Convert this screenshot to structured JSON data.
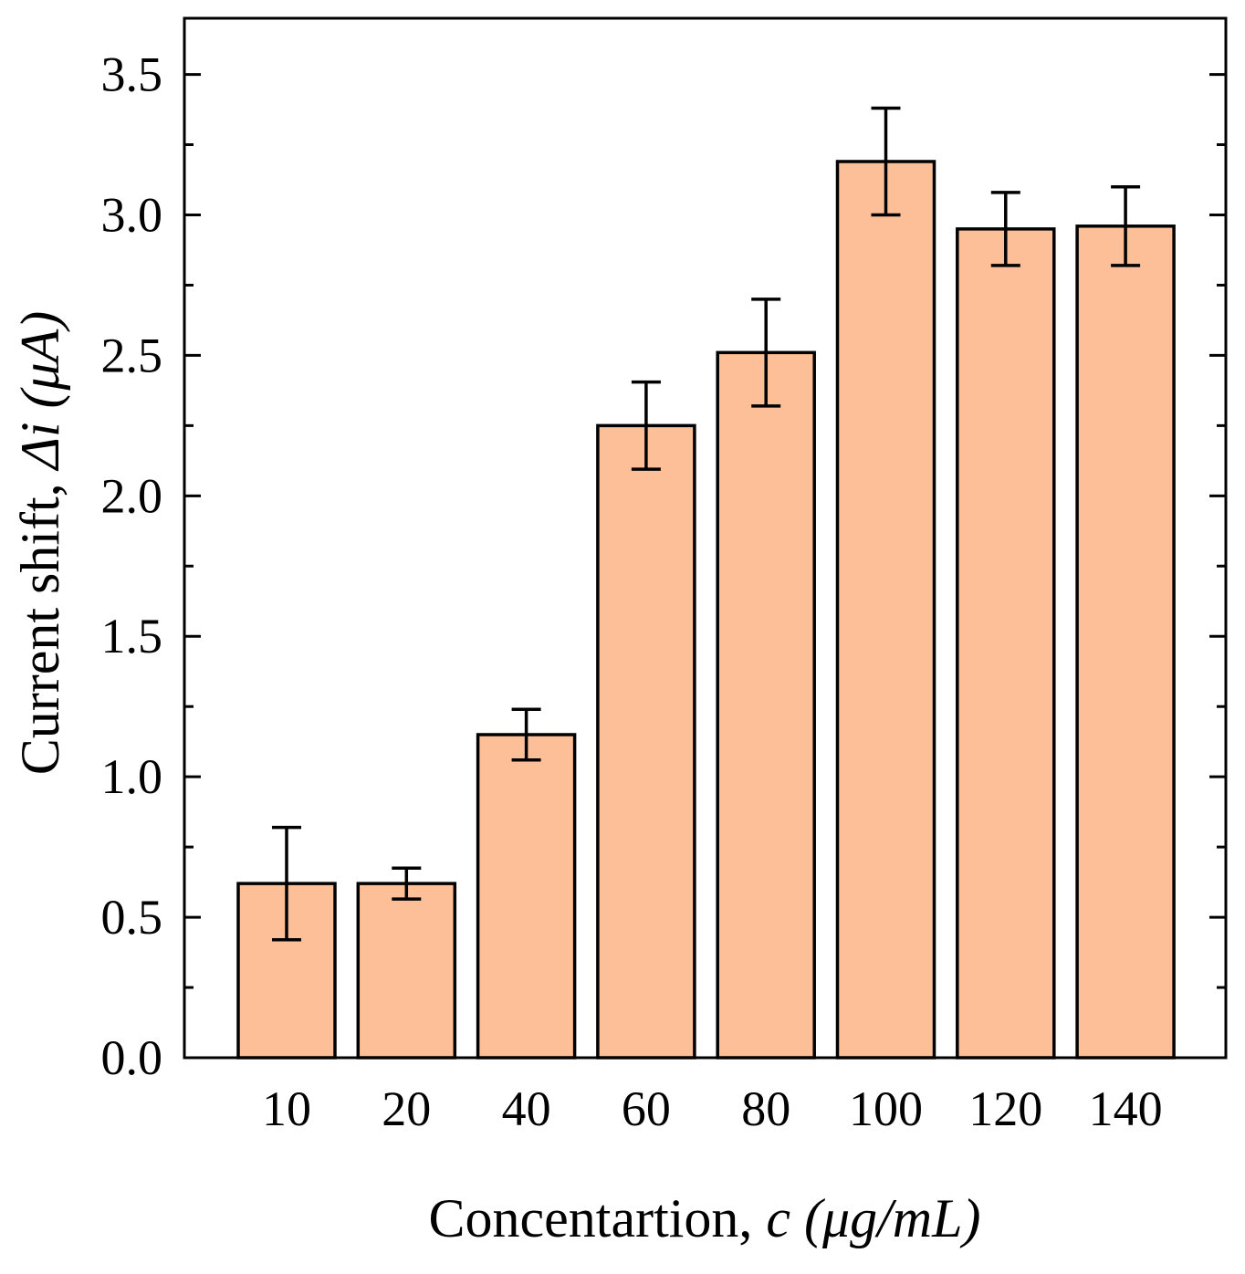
{
  "chart_data": {
    "type": "bar",
    "title": "",
    "categories": [
      "10",
      "20",
      "40",
      "60",
      "80",
      "100",
      "120",
      "140"
    ],
    "values": [
      0.62,
      0.62,
      1.15,
      2.25,
      2.51,
      3.19,
      2.95,
      2.96
    ],
    "errors": [
      0.2,
      0.055,
      0.09,
      0.155,
      0.19,
      0.19,
      0.13,
      0.14
    ],
    "ylim": [
      0,
      3.7
    ],
    "yticks": [
      0.0,
      0.5,
      1.0,
      1.5,
      2.0,
      2.5,
      3.0,
      3.5
    ],
    "ytick_labels": [
      "0.0",
      "0.5",
      "1.0",
      "1.5",
      "2.0",
      "2.5",
      "3.0",
      "3.5"
    ],
    "xlabel": {
      "prefix": "Concentartion, ",
      "italic": "c (μg/mL)"
    },
    "ylabel": {
      "prefix": "Current shift, ",
      "italic": "Δi (μA)"
    },
    "grid": false,
    "legend": "none",
    "colors": {
      "bar_fill": "#FDBF98",
      "stroke": "#000000"
    }
  }
}
